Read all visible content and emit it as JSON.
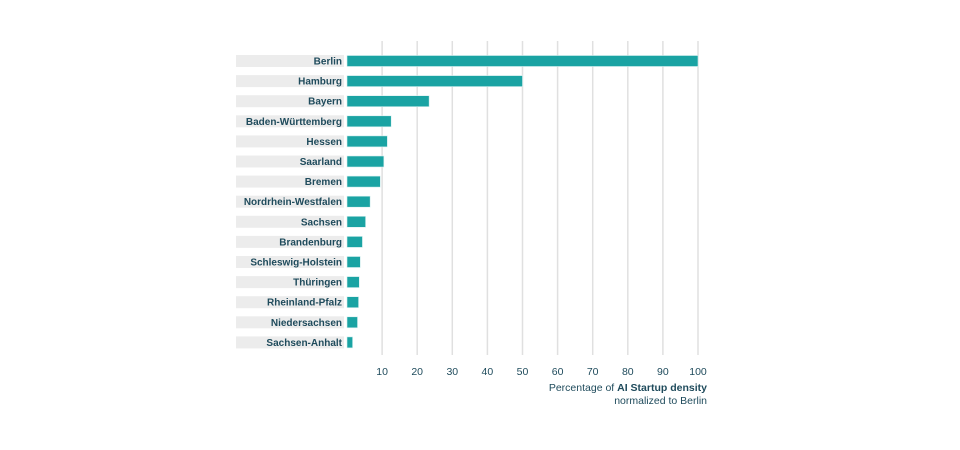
{
  "chart_data": {
    "type": "bar",
    "orientation": "horizontal",
    "categories": [
      "Berlin",
      "Hamburg",
      "Bayern",
      "Baden-Württemberg",
      "Hessen",
      "Saarland",
      "Bremen",
      "Nordrhein-Westfalen",
      "Sachsen",
      "Brandenburg",
      "Schleswig-Holstein",
      "Thüringen",
      "Rheinland-Pfalz",
      "Niedersachsen",
      "Sachsen-Anhalt"
    ],
    "values": [
      100,
      50,
      23.4,
      12.6,
      11.5,
      10.5,
      9.5,
      6.6,
      5.3,
      4.4,
      3.8,
      3.5,
      3.3,
      3.0,
      1.6
    ],
    "xlim": [
      0,
      100
    ],
    "xticks": [
      10,
      20,
      30,
      40,
      50,
      60,
      70,
      80,
      90,
      100
    ],
    "grid": true,
    "xlabel_prefix": "Percentage of ",
    "xlabel_bold": "AI Startup density",
    "xlabel_line2": "normalized to Berlin",
    "colors": {
      "bar": "#1aa3a3",
      "label_bg": "#ececec",
      "text": "#1f4b5c",
      "grid": "#e0e0e0"
    }
  }
}
